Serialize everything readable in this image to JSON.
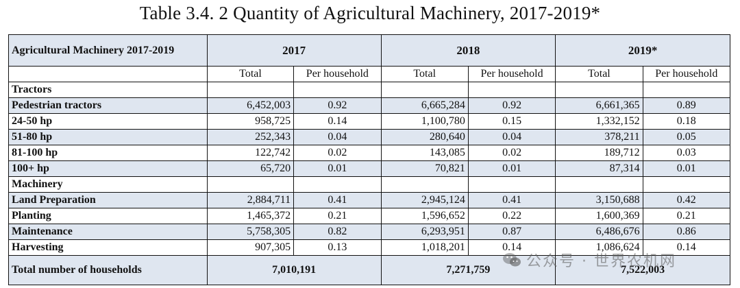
{
  "title": "Table 3.4. 2 Quantity of Agricultural Machinery, 2017-2019*",
  "header": {
    "label": "Agricultural Machinery 2017-2019",
    "years": [
      "2017",
      "2018",
      "2019*"
    ],
    "sub_total": "Total",
    "sub_per": "Per household"
  },
  "rows": [
    {
      "label": "Tractors",
      "section": true
    },
    {
      "label": "Pedestrian tractors",
      "v": [
        "6,452,003",
        "0.92",
        "6,665,284",
        "0.92",
        "6,661,365",
        "0.89"
      ]
    },
    {
      "label": "24-50 hp",
      "v": [
        "958,725",
        "0.14",
        "1,100,780",
        "0.15",
        "1,332,152",
        "0.18"
      ]
    },
    {
      "label": "51-80 hp",
      "v": [
        "252,343",
        "0.04",
        "280,640",
        "0.04",
        "378,211",
        "0.05"
      ]
    },
    {
      "label": "81-100 hp",
      "v": [
        "122,742",
        "0.02",
        "143,085",
        "0.02",
        "189,712",
        "0.03"
      ]
    },
    {
      "label": "100+ hp",
      "v": [
        "65,720",
        "0.01",
        "70,821",
        "0.01",
        "87,314",
        "0.01"
      ]
    },
    {
      "label": "Machinery",
      "section": true
    },
    {
      "label": "Land Preparation",
      "v": [
        "2,884,711",
        "0.41",
        "2,945,124",
        "0.41",
        "3,150,688",
        "0.42"
      ]
    },
    {
      "label": "Planting",
      "v": [
        "1,465,372",
        "0.21",
        "1,596,652",
        "0.22",
        "1,600,369",
        "0.21"
      ]
    },
    {
      "label": "Maintenance",
      "v": [
        "5,758,305",
        "0.82",
        "6,293,951",
        "0.87",
        "6,486,676",
        "0.86"
      ]
    },
    {
      "label": "Harvesting",
      "v": [
        "907,305",
        "0.13",
        "1,018,201",
        "0.14",
        "1,086,624",
        "0.14"
      ]
    }
  ],
  "total": {
    "label": "Total number of households",
    "values": [
      "7,010,191",
      "7,271,759",
      "7,522,003"
    ]
  },
  "watermark": "公众号 · 世界农机网",
  "colors": {
    "header_bg": "#dfe6f0",
    "border": "#111111"
  }
}
